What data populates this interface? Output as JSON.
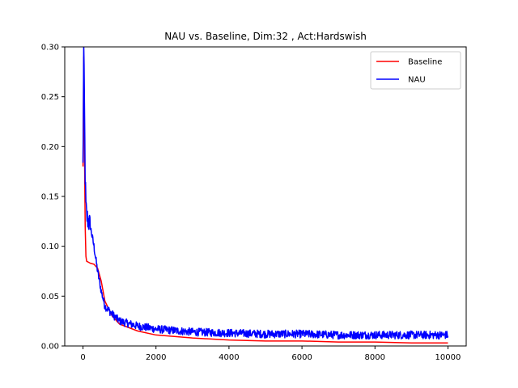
{
  "chart_data": {
    "type": "line",
    "title": "NAU vs. Baseline, Dim:32 , Act:Hardswish",
    "xlabel": "",
    "ylabel": "",
    "xlim": [
      -500,
      10500
    ],
    "ylim": [
      0.0,
      0.3
    ],
    "xticks": [
      0,
      2000,
      4000,
      6000,
      8000,
      10000
    ],
    "xtick_labels": [
      "0",
      "2000",
      "4000",
      "6000",
      "8000",
      "10000"
    ],
    "yticks": [
      0.0,
      0.05,
      0.1,
      0.15,
      0.2,
      0.25,
      0.3
    ],
    "ytick_labels": [
      "0.00",
      "0.05",
      "0.10",
      "0.15",
      "0.20",
      "0.25",
      "0.30"
    ],
    "grid": false,
    "legend": {
      "placement": "top-right"
    },
    "series": [
      {
        "name": "Baseline",
        "color": "#ff0000",
        "x": [
          0,
          20,
          40,
          60,
          80,
          100,
          150,
          200,
          300,
          400,
          500,
          600,
          800,
          1000,
          1500,
          2000,
          3000,
          4000,
          5000,
          6000,
          7000,
          8000,
          9000,
          10000
        ],
        "y": [
          0.18,
          0.29,
          0.2,
          0.12,
          0.09,
          0.085,
          0.084,
          0.083,
          0.082,
          0.078,
          0.065,
          0.045,
          0.03,
          0.022,
          0.015,
          0.011,
          0.008,
          0.006,
          0.005,
          0.005,
          0.004,
          0.004,
          0.003,
          0.003
        ]
      },
      {
        "name": "NAU",
        "color": "#0000ff",
        "x": [
          0,
          20,
          40,
          60,
          80,
          100,
          150,
          200,
          300,
          400,
          500,
          600,
          800,
          1000,
          1500,
          2000,
          3000,
          4000,
          5000,
          6000,
          7000,
          8000,
          9000,
          10000
        ],
        "y": [
          0.18,
          0.3,
          0.24,
          0.17,
          0.14,
          0.13,
          0.125,
          0.12,
          0.1,
          0.075,
          0.055,
          0.04,
          0.032,
          0.025,
          0.02,
          0.017,
          0.014,
          0.013,
          0.012,
          0.012,
          0.011,
          0.011,
          0.011,
          0.011
        ],
        "noise": 0.004
      }
    ]
  }
}
